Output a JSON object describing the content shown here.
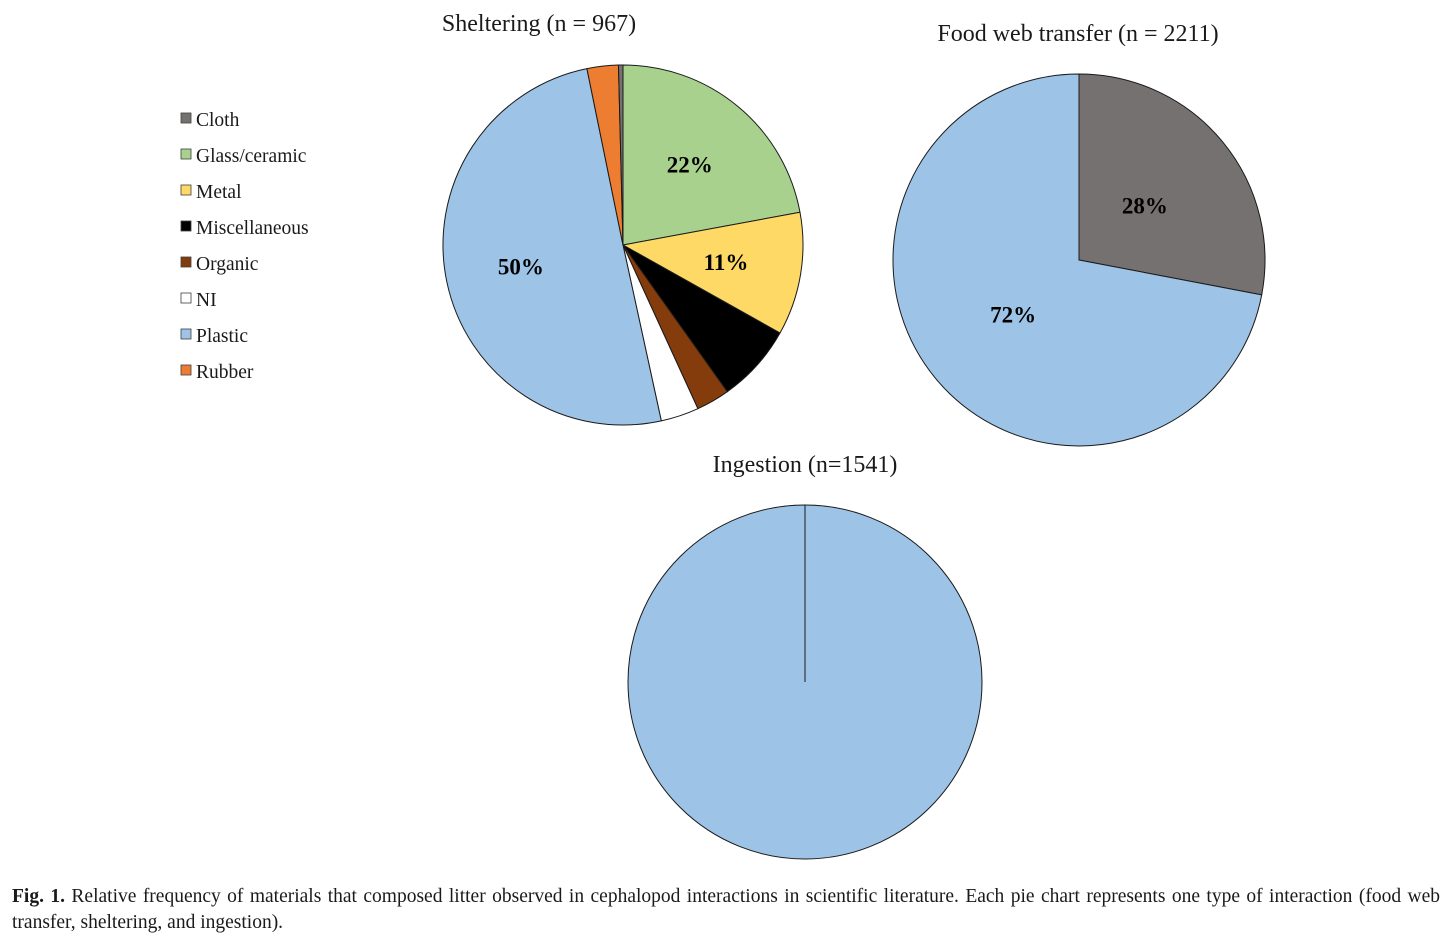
{
  "legend": {
    "items": [
      {
        "label": "Cloth",
        "color": "#767171"
      },
      {
        "label": "Glass/ceramic",
        "color": "#a9d18e"
      },
      {
        "label": "Metal",
        "color": "#ffd966"
      },
      {
        "label": "Miscellaneous",
        "color": "#000000"
      },
      {
        "label": "Organic",
        "color": "#843c0c"
      },
      {
        "label": "NI",
        "color": "#ffffff"
      },
      {
        "label": "Plastic",
        "color": "#9dc3e6"
      },
      {
        "label": "Rubber",
        "color": "#ed7d31"
      }
    ]
  },
  "chart_data": [
    {
      "type": "pie",
      "title": "Sheltering (n = 967)",
      "slices": [
        {
          "category": "Glass/ceramic",
          "value": 22,
          "label": "22%"
        },
        {
          "category": "Metal",
          "value": 11,
          "label": "11%"
        },
        {
          "category": "Miscellaneous",
          "value": 7,
          "label": ""
        },
        {
          "category": "Organic",
          "value": 3,
          "label": ""
        },
        {
          "category": "NI",
          "value": 3.4,
          "label": ""
        },
        {
          "category": "Plastic",
          "value": 50,
          "label": "50%"
        },
        {
          "category": "Rubber",
          "value": 2.8,
          "label": ""
        },
        {
          "category": "Cloth",
          "value": 0.4,
          "label": ""
        }
      ]
    },
    {
      "type": "pie",
      "title": "Food web transfer (n = 2211)",
      "slices": [
        {
          "category": "Cloth",
          "value": 28,
          "label": "28%"
        },
        {
          "category": "Plastic",
          "value": 72,
          "label": "72%"
        }
      ]
    },
    {
      "type": "pie",
      "title": "Ingestion (n=1541)",
      "slices": [
        {
          "category": "Plastic",
          "value": 100,
          "label": ""
        }
      ]
    }
  ],
  "caption": {
    "label": "Fig. 1.",
    "text": "Relative frequency of materials that composed litter observed in cephalopod interactions in scientific literature. Each pie chart represents one type of interaction (food web transfer, sheltering, and ingestion)."
  }
}
